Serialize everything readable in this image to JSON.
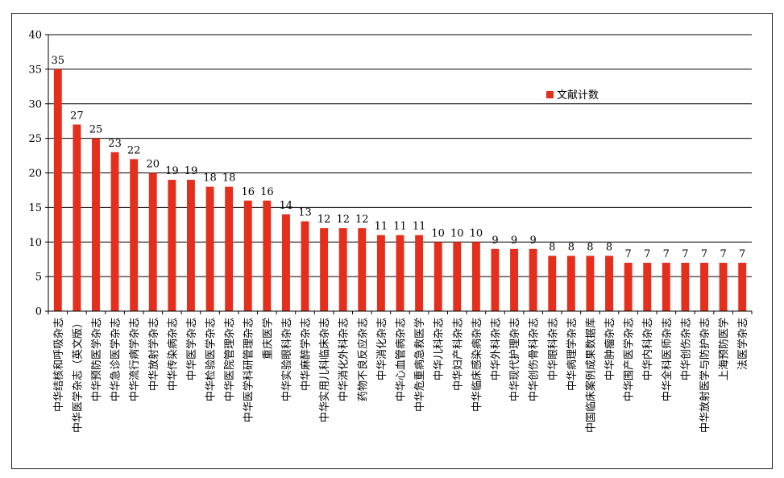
{
  "chart_data": {
    "type": "bar",
    "title": "",
    "xlabel": "",
    "ylabel": "",
    "ylim": [
      0,
      40
    ],
    "yticks": [
      0,
      5,
      10,
      15,
      20,
      25,
      30,
      35,
      40
    ],
    "grid": true,
    "legend_position": "top-right",
    "bar_color": "#e62e1c",
    "series": [
      {
        "name": "文献计数",
        "values": [
          35,
          27,
          25,
          23,
          22,
          20,
          19,
          19,
          18,
          18,
          16,
          16,
          14,
          13,
          12,
          12,
          12,
          11,
          11,
          11,
          10,
          10,
          10,
          9,
          9,
          9,
          8,
          8,
          8,
          8,
          7,
          7,
          7,
          7,
          7,
          7,
          7
        ]
      }
    ],
    "categories": [
      "中华结核和呼吸杂志",
      "中华医学杂志（英文版）",
      "中华预防医学杂志",
      "中华急诊医学杂志",
      "中华流行病学杂志",
      "中华放射学杂志",
      "中华传染病杂志",
      "中华医学杂志",
      "中华检验医学杂志",
      "中华医院管理杂志",
      "中华医学科研管理杂志",
      "重庆医学",
      "中华实验眼科杂志",
      "中华麻醉学杂志",
      "中华实用儿科临床杂志",
      "中华消化外科杂志",
      "药物不良反应杂志",
      "中华消化杂志",
      "中华心血管病杂志",
      "中华危重病急救医学",
      "中华儿科杂志",
      "中华妇产科杂志",
      "中华临床感染病杂志",
      "中华外科杂志",
      "中华现代护理杂志",
      "中华创伤骨科杂志",
      "中华眼科杂志",
      "中华病理学杂志",
      "中国临床案例成果数据库",
      "中华肿瘤杂志",
      "中华围产医学杂志",
      "中华内科杂志",
      "中华全科医师杂志",
      "中华创伤杂志",
      "中华放射医学与防护杂志",
      "上海预防医学",
      "法医学杂志"
    ]
  }
}
